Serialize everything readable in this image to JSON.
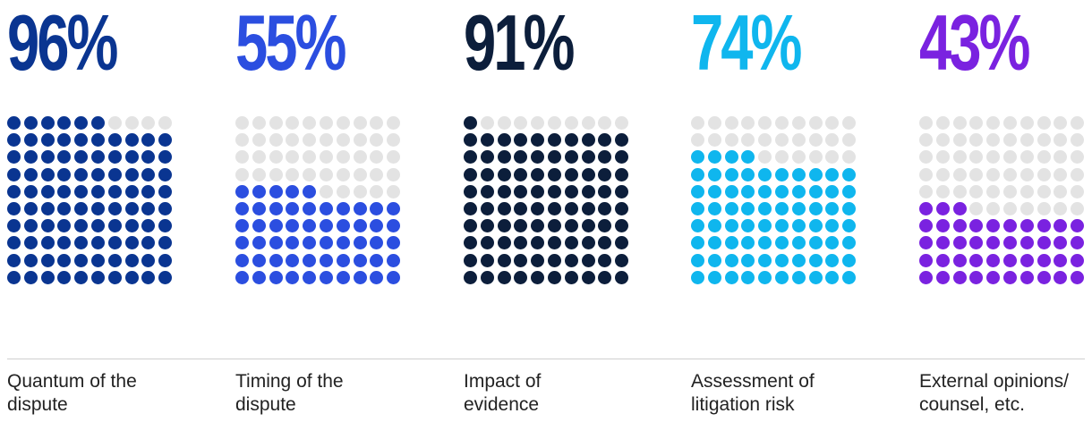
{
  "chart_data": {
    "type": "waffle",
    "grid": {
      "rows": 10,
      "cols": 10,
      "empty_color": "#e3e3e3"
    },
    "items": [
      {
        "value": 96,
        "label": "96%",
        "category": "Quantum of the\ndispute",
        "color": "#0a3591"
      },
      {
        "value": 55,
        "label": "55%",
        "category": "Timing of the\ndispute",
        "color": "#2b4ee0"
      },
      {
        "value": 91,
        "label": "91%",
        "category": "Impact of\nevidence",
        "color": "#0c1e3b"
      },
      {
        "value": 74,
        "label": "74%",
        "category": "Assessment of\nlitigation risk",
        "color": "#0fb6ee"
      },
      {
        "value": 43,
        "label": "43%",
        "category": "External opinions/\ncounsel, etc.",
        "color": "#7a22e0"
      }
    ]
  }
}
